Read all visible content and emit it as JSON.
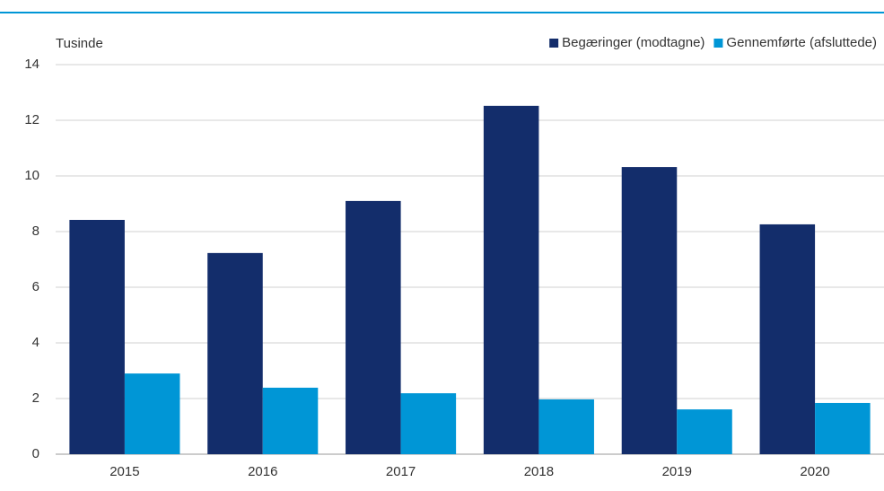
{
  "chart_data": {
    "type": "bar",
    "y_axis_label": "Tusinde",
    "categories": [
      "2015",
      "2016",
      "2017",
      "2018",
      "2019",
      "2020"
    ],
    "series": [
      {
        "name": "Begæringer (modtagne)",
        "color": "#132d6b",
        "values": [
          8.42,
          7.23,
          9.1,
          12.52,
          10.32,
          8.26
        ]
      },
      {
        "name": "Gennemførte (afsluttede)",
        "color": "#0096d6",
        "values": [
          2.9,
          2.39,
          2.19,
          1.97,
          1.61,
          1.84
        ]
      }
    ],
    "ylim": [
      0,
      14
    ],
    "yticks": [
      0,
      2,
      4,
      6,
      8,
      10,
      12,
      14
    ],
    "grid": true,
    "legend": "top-right"
  }
}
